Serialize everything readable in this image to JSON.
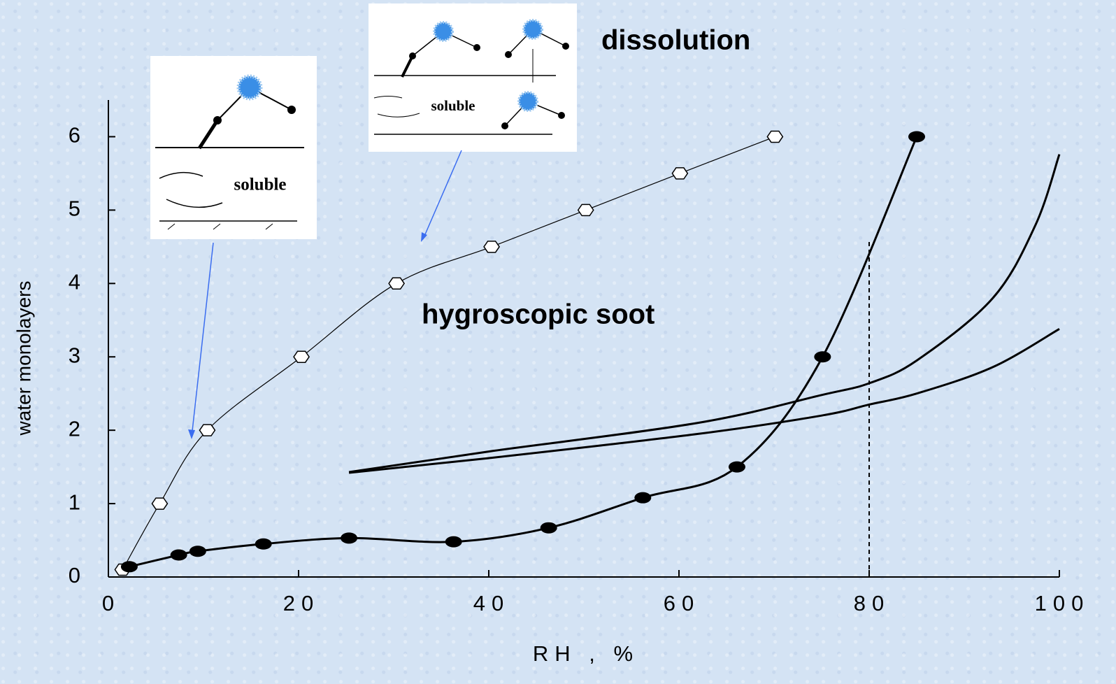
{
  "chart_data": {
    "type": "line",
    "xlabel": "RH , %",
    "ylabel": "water monolayers",
    "xlim": [
      0,
      100
    ],
    "ylim": [
      0,
      6.5
    ],
    "xticks": [
      0,
      20,
      40,
      60,
      80,
      100
    ],
    "yticks": [
      0,
      1,
      2,
      3,
      4,
      5,
      6
    ],
    "reference_x": 80,
    "annotations": [
      "dissolution",
      "hygroscopic soot"
    ],
    "insets": [
      {
        "label": "soluble"
      },
      {
        "label": "soluble"
      }
    ],
    "series": [
      {
        "color": "#000000",
        "marker": "hexagon",
        "line_width": 1.2,
        "x": [
          1.5,
          5.4,
          10.4,
          20.3,
          30.3,
          40.3,
          50.2,
          60.1,
          70.1
        ],
        "values": [
          0.1,
          1,
          2,
          3,
          4,
          4.5,
          5,
          5.5,
          6
        ]
      },
      {
        "color": "#000000",
        "marker": "ellipse",
        "line_width": 3,
        "x": [
          2.2,
          7.4,
          9.4,
          16.3,
          25.3,
          36.3,
          46.3,
          56.2,
          66.1,
          75.1,
          85
        ],
        "values": [
          0.14,
          0.3,
          0.35,
          0.45,
          0.53,
          0.48,
          0.67,
          1.08,
          1.5,
          3,
          6
        ]
      },
      {
        "color": "#000000",
        "marker": "none",
        "line_width": 3,
        "x": [
          25.3,
          40,
          62,
          75,
          80,
          85,
          93,
          97.5,
          100
        ],
        "values": [
          1.43,
          1.71,
          2.1,
          2.48,
          2.64,
          2.95,
          3.8,
          4.8,
          5.76
        ]
      },
      {
        "color": "#000000",
        "marker": "none",
        "line_width": 3,
        "x": [
          25.3,
          40,
          62,
          75,
          80,
          85,
          93,
          100
        ],
        "values": [
          1.42,
          1.62,
          1.95,
          2.2,
          2.35,
          2.5,
          2.86,
          3.38
        ]
      }
    ]
  }
}
